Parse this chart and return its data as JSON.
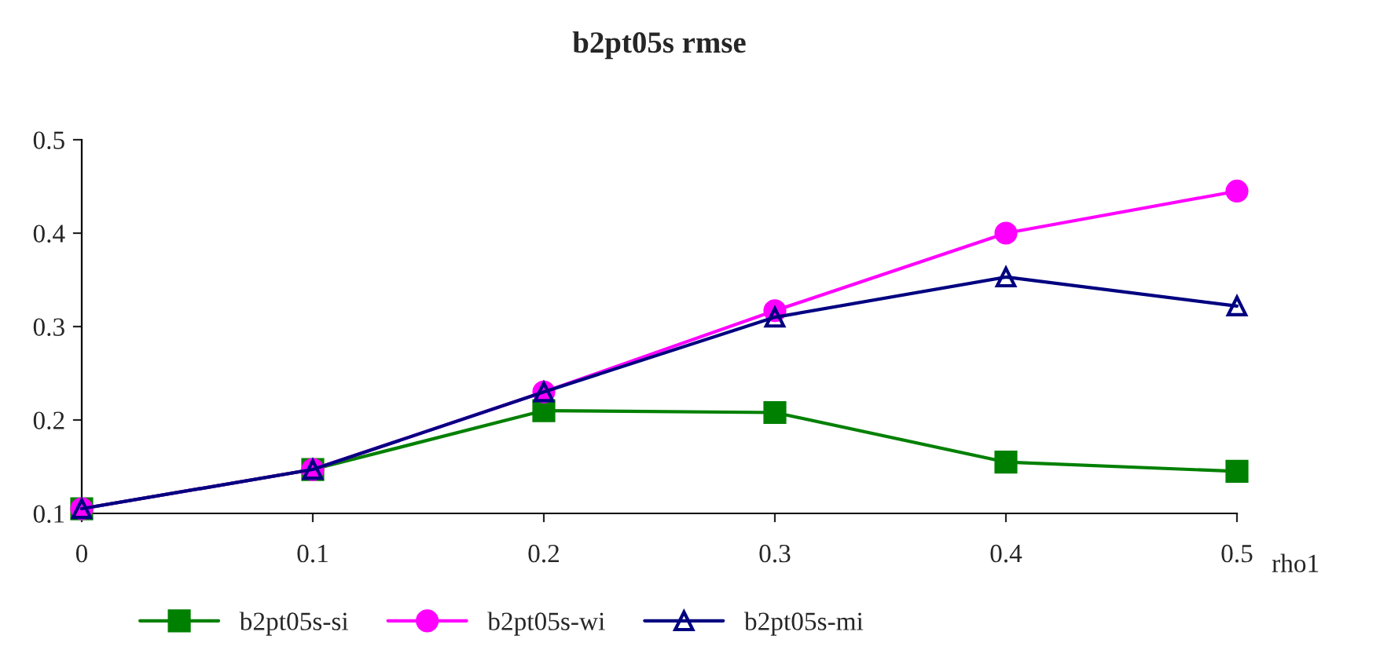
{
  "chart_data": {
    "type": "line",
    "title": "b2pt05s rmse",
    "xlabel": "rho1",
    "x": [
      0,
      0.1,
      0.2,
      0.3,
      0.4,
      0.5
    ],
    "series": [
      {
        "name": "b2pt05s-si",
        "color": "#008000",
        "marker": "square",
        "values": [
          0.105,
          0.147,
          0.21,
          0.208,
          0.155,
          0.145
        ]
      },
      {
        "name": "b2pt05s-wi",
        "color": "#ff00ff",
        "marker": "circle",
        "values": [
          0.105,
          0.147,
          0.23,
          0.317,
          0.4,
          0.445
        ]
      },
      {
        "name": "b2pt05s-mi",
        "color": "#000080",
        "marker": "triangle",
        "values": [
          0.105,
          0.147,
          0.23,
          0.31,
          0.353,
          0.322
        ]
      }
    ],
    "xlim": [
      0,
      0.5
    ],
    "xticks": [
      0,
      0.1,
      0.2,
      0.3,
      0.4,
      0.5
    ],
    "ylim": [
      0.1,
      0.5
    ],
    "yticks": [
      0.1,
      0.2,
      0.3,
      0.4,
      0.5
    ],
    "grid": false,
    "legend": "bottom"
  }
}
